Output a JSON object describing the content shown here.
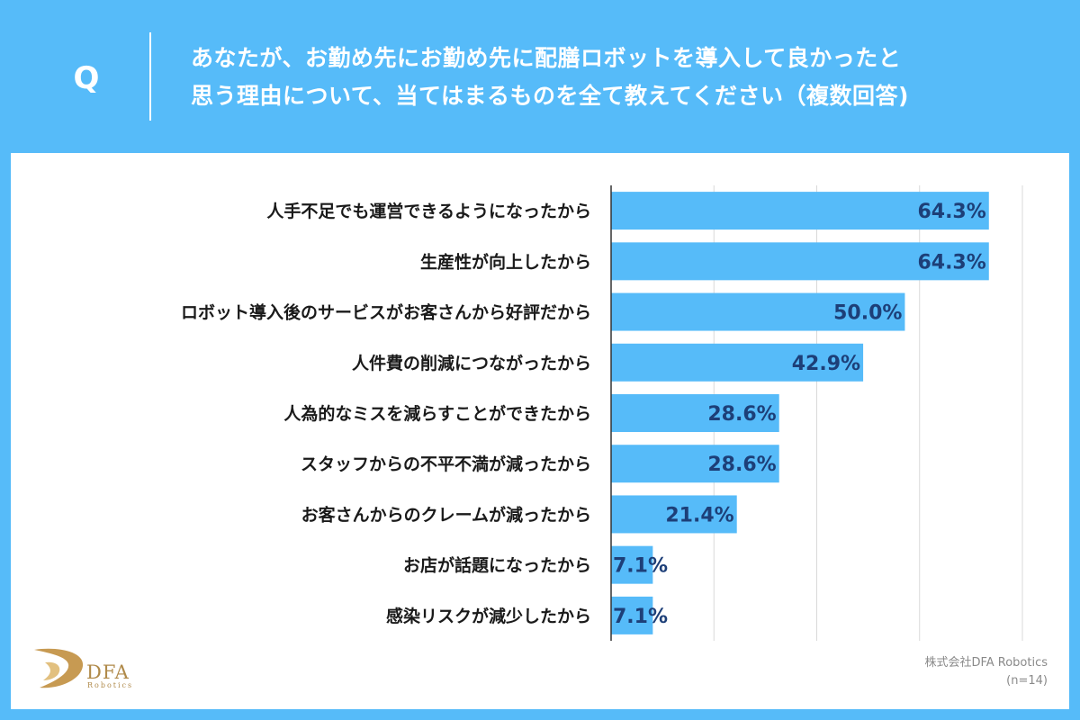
{
  "header": {
    "q_mark": "Q",
    "question_line1": "あなたが、お勤め先にお勤め先に配膳ロボットを導入して良かったと",
    "question_line2": "思う理由について、当てはまるものを全て教えてください（複数回答)"
  },
  "chart_data": {
    "type": "bar",
    "orientation": "horizontal",
    "categories": [
      "人手不足でも運営できるようになったから",
      "生産性が向上したから",
      "ロボット導入後のサービスがお客さんから好評だから",
      "人件費の削減につながったから",
      "人為的なミスを減らすことができたから",
      "スタッフからの不平不満が減ったから",
      "お客さんからのクレームが減ったから",
      "お店が話題になったから",
      "感染リスクが減少したから"
    ],
    "values": [
      64.3,
      64.3,
      50.0,
      42.9,
      28.6,
      28.6,
      21.4,
      7.1,
      7.1
    ],
    "value_labels": [
      "64.3%",
      "64.3%",
      "50.0%",
      "42.9%",
      "28.6%",
      "28.6%",
      "21.4%",
      "7.1%",
      "7.1%"
    ],
    "xlim": [
      0,
      70
    ],
    "grid_step": 17.5,
    "grid": true,
    "bar_color": "#56bbf9",
    "label_color": "#1d3f78"
  },
  "footer": {
    "logo_text": "DFA",
    "logo_sub": "Robotics",
    "source": "株式会社DFA Robotics",
    "sample": "(n=14)"
  },
  "colors": {
    "background": "#56bbf9",
    "panel": "#ffffff",
    "logo_gold": "#b08a4a"
  }
}
